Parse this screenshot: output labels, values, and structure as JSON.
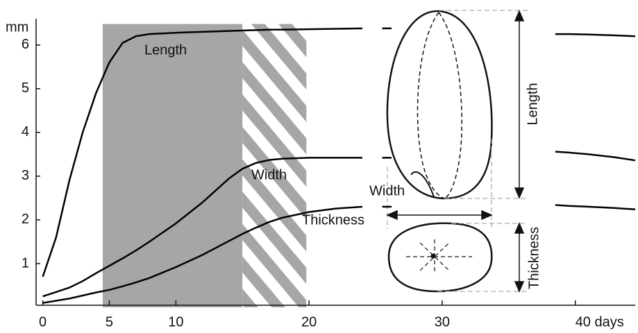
{
  "chart_data": {
    "type": "line",
    "y_unit_label": "mm",
    "x": [
      0,
      1,
      2,
      3,
      4,
      5,
      6,
      7,
      8,
      10,
      12,
      14,
      15,
      16,
      17,
      18,
      20,
      22,
      24,
      24.8,
      25.5,
      26.2,
      32,
      38.5,
      39.5,
      41,
      43,
      44.5
    ],
    "series": [
      {
        "name": "Length",
        "color": "#000000",
        "values": [
          0.7,
          1.6,
          2.9,
          4.0,
          4.9,
          5.6,
          6.05,
          6.2,
          6.25,
          6.28,
          6.3,
          6.32,
          6.33,
          6.34,
          6.35,
          6.35,
          6.36,
          6.37,
          6.38,
          null,
          6.38,
          6.38,
          null,
          6.25,
          6.25,
          6.24,
          6.22,
          6.2
        ]
      },
      {
        "name": "Width",
        "color": "#000000",
        "values": [
          0.25,
          0.35,
          0.45,
          0.6,
          0.78,
          0.95,
          1.12,
          1.3,
          1.5,
          1.92,
          2.4,
          2.95,
          3.17,
          3.3,
          3.37,
          3.4,
          3.42,
          3.42,
          3.42,
          null,
          3.42,
          3.42,
          null,
          3.56,
          3.54,
          3.5,
          3.43,
          3.36
        ]
      },
      {
        "name": "Thickness",
        "color": "#000000",
        "values": [
          0.1,
          0.15,
          0.2,
          0.27,
          0.34,
          0.4,
          0.48,
          0.57,
          0.67,
          0.92,
          1.2,
          1.52,
          1.68,
          1.82,
          1.95,
          2.05,
          2.18,
          2.26,
          2.3,
          null,
          2.3,
          2.3,
          null,
          2.34,
          2.32,
          2.3,
          2.27,
          2.24
        ]
      }
    ],
    "regions": [
      {
        "start": 4.5,
        "end": 15,
        "top": 6.48,
        "style": "solid"
      },
      {
        "start": 15,
        "end": 19.8,
        "top": 6.48,
        "style": "hatched"
      }
    ],
    "xlim": [
      -0.5,
      44.5
    ],
    "ylim": [
      0,
      6.6
    ],
    "xticks": [
      0,
      5,
      10,
      20,
      30,
      {
        "value": 40,
        "label": "40 days"
      }
    ],
    "yticks": [
      1,
      2,
      3,
      4,
      5,
      6
    ],
    "grain_labels": {
      "length": "Length",
      "width": "Width",
      "thickness": "Thickness"
    }
  }
}
